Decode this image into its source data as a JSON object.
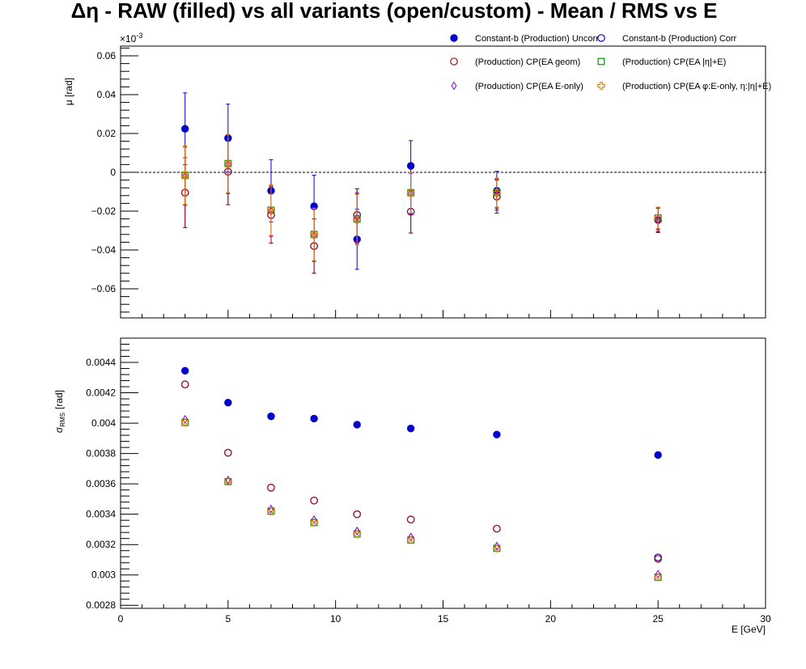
{
  "title": "Δη  -  RAW (filled) vs all variants (open/custom)  -  Mean / RMS vs E",
  "chart_data": [
    {
      "type": "scatter",
      "panel": "top",
      "ylabel": "μ  [rad]",
      "exponent_label": "×10",
      "exponent_sup": "-3",
      "ylim": [
        -0.075,
        0.065
      ],
      "xlim": [
        0,
        30
      ],
      "yticks": [
        0.06,
        0.04,
        0.02,
        0,
        -0.02,
        -0.04,
        -0.06
      ],
      "ytick_labels": [
        "0.06",
        "0.04",
        "0.02",
        "0",
        "−0.02",
        "−0.04",
        "−0.06"
      ],
      "zero_line": true,
      "grid": false,
      "legend_position": "top-right",
      "x": [
        3,
        5,
        7,
        9,
        11,
        13.5,
        17.5,
        25
      ],
      "series": [
        {
          "name": "Constant-b (Production) Uncorr",
          "color": "#0000cc",
          "marker": "filled-circle",
          "values": [
            0.0224,
            0.0176,
            -0.0095,
            -0.0175,
            -0.0345,
            0.0033,
            -0.0095,
            -0.0245
          ],
          "errors": [
            0.0185,
            0.0175,
            0.016,
            0.016,
            0.0155,
            0.013,
            0.01,
            0.0065
          ]
        },
        {
          "name": "Constant-b (Production) Corr",
          "color": "#0000cc",
          "marker": "open-circle",
          "values": [
            -0.0105,
            0.0003,
            -0.022,
            -0.038,
            -0.022,
            -0.0203,
            -0.0125,
            -0.0245
          ],
          "errors": [
            0.018,
            0.017,
            0.0145,
            0.014,
            0.0135,
            0.011,
            0.0085,
            0.006
          ]
        },
        {
          "name": "(Production) CP(EA geom)",
          "color": "#aa1111",
          "marker": "open-circle",
          "values": [
            -0.0105,
            0.0003,
            -0.022,
            -0.038,
            -0.022,
            -0.0203,
            -0.0125,
            -0.0245
          ],
          "errors": [
            0.018,
            0.017,
            0.0145,
            0.014,
            0.0135,
            0.011,
            0.0085,
            0.006
          ]
        },
        {
          "name": "(Production) CP(EA |η|+E)",
          "color": "#009900",
          "marker": "open-square",
          "values": [
            -0.0015,
            0.0045,
            -0.0195,
            -0.032,
            -0.024,
            -0.0105,
            -0.0105,
            -0.0235
          ],
          "errors": [
            0.015,
            0.015,
            0.013,
            0.0135,
            0.013,
            0.0105,
            0.0075,
            0.0055
          ]
        },
        {
          "name": "(Production) CP(EA E-only)",
          "color": "#8800cc",
          "marker": "open-diamond",
          "values": [
            -0.002,
            0.004,
            -0.02,
            -0.0325,
            -0.0235,
            -0.011,
            -0.011,
            -0.024
          ],
          "errors": [
            0.015,
            0.015,
            0.013,
            0.0135,
            0.013,
            0.0105,
            0.0075,
            0.0055
          ]
        },
        {
          "name": "(Production) CP(EA φ:E-only, η:|η|+E)",
          "color": "#ee7700",
          "marker": "open-cross",
          "values": [
            -0.0015,
            0.0045,
            -0.0195,
            -0.032,
            -0.0245,
            -0.0105,
            -0.0105,
            -0.0235
          ],
          "errors": [
            0.015,
            0.015,
            0.013,
            0.0135,
            0.013,
            0.0105,
            0.0075,
            0.0055
          ]
        }
      ]
    },
    {
      "type": "scatter",
      "panel": "bottom",
      "ylabel": "σ",
      "ylabel_sub": "RMS",
      "ylabel_unit": "[rad]",
      "xlabel": "E  [GeV]",
      "ylim": [
        0.00278,
        0.00456
      ],
      "xlim": [
        0,
        30
      ],
      "yticks": [
        0.0028,
        0.003,
        0.0032,
        0.0034,
        0.0036,
        0.0038,
        0.004,
        0.0042,
        0.0044
      ],
      "ytick_labels": [
        "0.0028",
        "0.003",
        "0.0032",
        "0.0034",
        "0.0036",
        "0.0038",
        "0.004",
        "0.0042",
        "0.0044"
      ],
      "xticks": [
        0,
        5,
        10,
        15,
        20,
        25,
        30
      ],
      "xtick_labels": [
        "0",
        "5",
        "10",
        "15",
        "20",
        "25",
        "30"
      ],
      "grid": false,
      "x": [
        3,
        5,
        7,
        9,
        11,
        13.5,
        17.5,
        25
      ],
      "series": [
        {
          "name": "Constant-b (Production) Uncorr",
          "color": "#0000cc",
          "marker": "filled-circle",
          "values": [
            0.004345,
            0.004135,
            0.004045,
            0.00403,
            0.00399,
            0.003965,
            0.003925,
            0.00379
          ]
        },
        {
          "name": "Constant-b (Production) Corr",
          "color": "#0000cc",
          "marker": "open-circle",
          "values": [
            0.004255,
            0.003805,
            0.003575,
            0.00349,
            0.0034,
            0.003365,
            0.003305,
            0.003115
          ]
        },
        {
          "name": "(Production) CP(EA geom)",
          "color": "#aa1111",
          "marker": "open-circle",
          "values": [
            0.004255,
            0.003805,
            0.003575,
            0.00349,
            0.0034,
            0.003365,
            0.003305,
            0.003105
          ]
        },
        {
          "name": "(Production) CP(EA |η|+E)",
          "color": "#009900",
          "marker": "open-square",
          "values": [
            0.004005,
            0.003615,
            0.00342,
            0.003345,
            0.00327,
            0.00323,
            0.003175,
            0.002985
          ]
        },
        {
          "name": "(Production) CP(EA E-only)",
          "color": "#8800cc",
          "marker": "open-diamond",
          "values": [
            0.004025,
            0.003625,
            0.003435,
            0.003365,
            0.00329,
            0.00325,
            0.00319,
            0.003005
          ]
        },
        {
          "name": "(Production) CP(EA φ:E-only, η:|η|+E)",
          "color": "#ee7700",
          "marker": "open-cross",
          "values": [
            0.004005,
            0.003615,
            0.00342,
            0.003345,
            0.00327,
            0.00323,
            0.003175,
            0.002985
          ]
        }
      ]
    }
  ]
}
